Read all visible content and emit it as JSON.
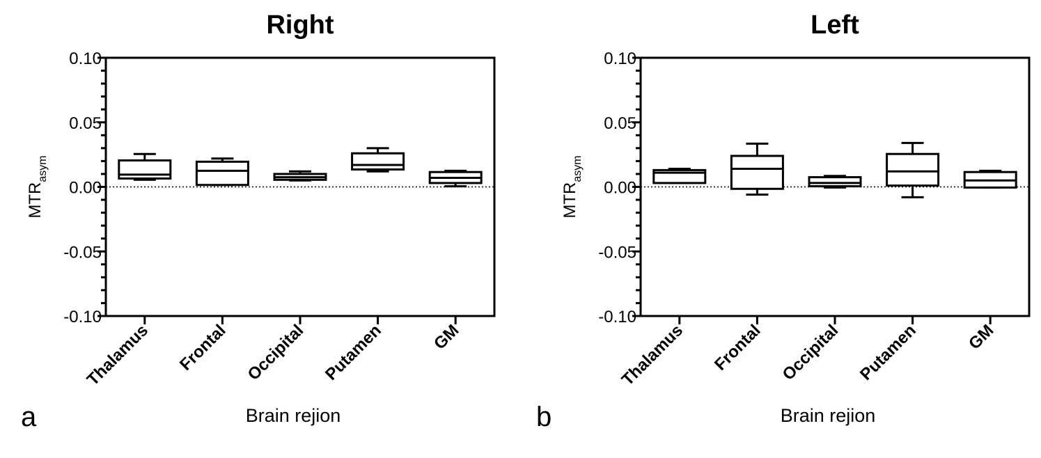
{
  "chart_data": [
    {
      "type": "box",
      "panel_label": "a",
      "title": "Right",
      "xlabel": "Brain rejion",
      "ylabel": "MTR",
      "ylabel_subscript": "asym",
      "ylim": [
        -0.1,
        0.1
      ],
      "yticks": [
        "0.10",
        "0.05",
        "0.00",
        "-0.05",
        "-0.10"
      ],
      "reference_line": 0,
      "grid": false,
      "categories": [
        "Thalamus",
        "Frontal",
        "Occipital",
        "Putamen",
        "GM"
      ],
      "boxes": [
        {
          "min": 0.0055,
          "q1": 0.0065,
          "median": 0.0095,
          "q3": 0.0205,
          "max": 0.0255
        },
        {
          "min": 0.0015,
          "q1": 0.0015,
          "median": 0.0125,
          "q3": 0.0195,
          "max": 0.022
        },
        {
          "min": 0.005,
          "q1": 0.0055,
          "median": 0.0075,
          "q3": 0.01,
          "max": 0.012
        },
        {
          "min": 0.012,
          "q1": 0.0135,
          "median": 0.017,
          "q3": 0.026,
          "max": 0.03
        },
        {
          "min": 0.0005,
          "q1": 0.003,
          "median": 0.007,
          "q3": 0.0115,
          "max": 0.0125
        }
      ]
    },
    {
      "type": "box",
      "panel_label": "b",
      "title": "Left",
      "xlabel": "Brain rejion",
      "ylabel": "MTR",
      "ylabel_subscript": "asym",
      "ylim": [
        -0.1,
        0.1
      ],
      "yticks": [
        "0.10",
        "0.05",
        "0.00",
        "-0.05",
        "-0.10"
      ],
      "reference_line": 0,
      "grid": false,
      "categories": [
        "Thalamus",
        "Frontal",
        "Occipital",
        "Putamen",
        "GM"
      ],
      "boxes": [
        {
          "min": 0.003,
          "q1": 0.003,
          "median": 0.011,
          "q3": 0.013,
          "max": 0.014
        },
        {
          "min": -0.006,
          "q1": -0.0015,
          "median": 0.014,
          "q3": 0.024,
          "max": 0.0335
        },
        {
          "min": -0.0005,
          "q1": 0.0005,
          "median": 0.003,
          "q3": 0.0075,
          "max": 0.0085
        },
        {
          "min": -0.008,
          "q1": 0.001,
          "median": 0.012,
          "q3": 0.0255,
          "max": 0.034
        },
        {
          "min": -0.0005,
          "q1": -0.0005,
          "median": 0.005,
          "q3": 0.0115,
          "max": 0.0125
        }
      ]
    }
  ]
}
